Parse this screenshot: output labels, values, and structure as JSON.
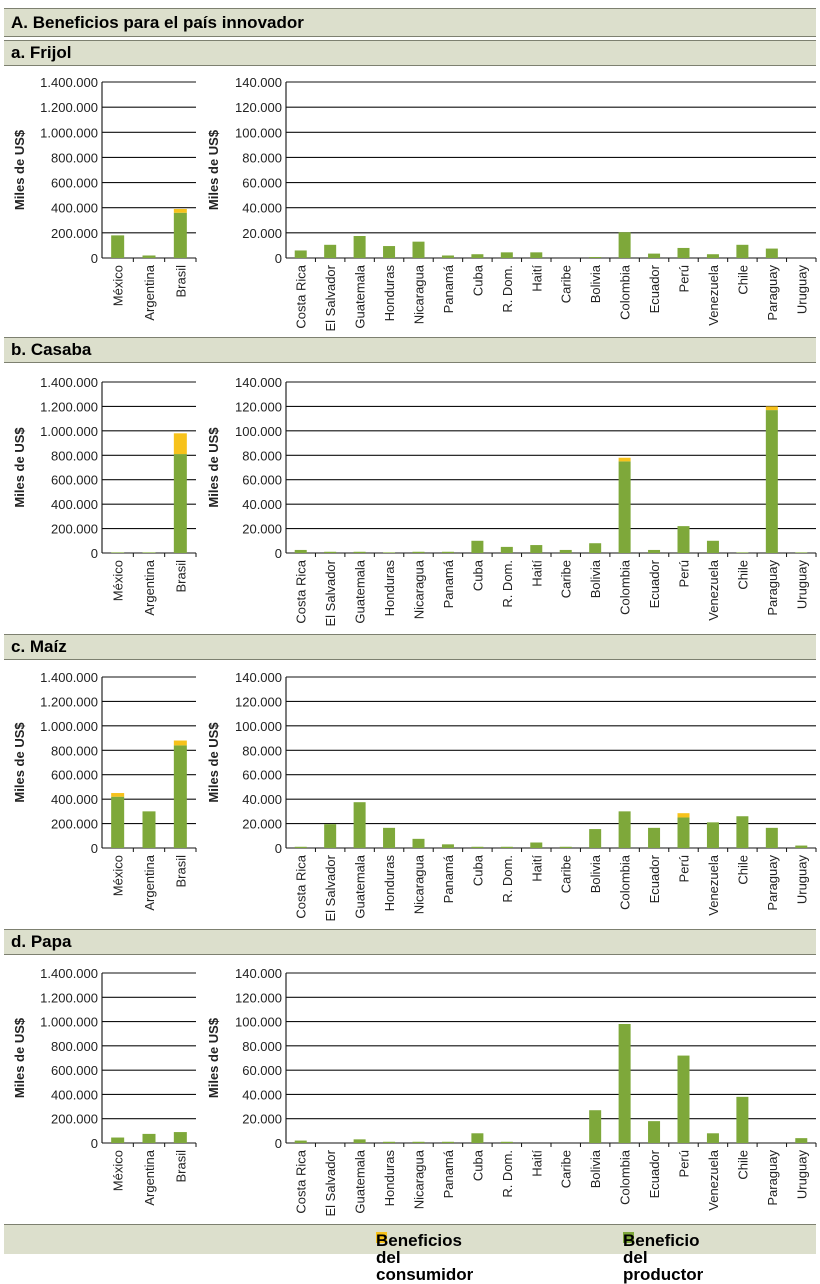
{
  "panel_title": "A. Beneficios para el país innovador",
  "y_axis_label": "Miles de US$",
  "legend": [
    {
      "label": "Beneficios del consumidor",
      "color": "#f7c21b"
    },
    {
      "label": "Beneficio del productor",
      "color": "#7ea83a"
    }
  ],
  "colors": {
    "consumer": "#f7c21b",
    "producer": "#7ea83a",
    "header_band": "#dcdfcc"
  },
  "chart_data": [
    {
      "type": "bar",
      "stacked": true,
      "section": "a. Frijol",
      "panel": "large",
      "categories": [
        "México",
        "Argentina",
        "Brasil"
      ],
      "ylim": [
        0,
        1400000
      ],
      "yticks": [
        "1.400.000",
        "1.200.000",
        "1.000.000",
        "800.000",
        "600.000",
        "400.000",
        "200.000",
        "0"
      ],
      "series": [
        {
          "name": "Beneficio del productor",
          "values": [
            180000,
            20000,
            360000
          ]
        },
        {
          "name": "Beneficios del consumidor",
          "values": [
            0,
            0,
            30000
          ]
        }
      ]
    },
    {
      "type": "bar",
      "stacked": true,
      "section": "a. Frijol",
      "panel": "small",
      "categories": [
        "Costa Rica",
        "El Salvador",
        "Guatemala",
        "Honduras",
        "Nicaragua",
        "Panamá",
        "Cuba",
        "R. Dom.",
        "Haití",
        "Caribe",
        "Bolivia",
        "Colombia",
        "Ecuador",
        "Perú",
        "Venezuela",
        "Chile",
        "Paraguay",
        "Uruguay"
      ],
      "ylim": [
        0,
        140000
      ],
      "yticks": [
        "140.000",
        "120.000",
        "100.000",
        "80.000",
        "60.000",
        "40.000",
        "20.000",
        "0"
      ],
      "series": [
        {
          "name": "Beneficio del productor",
          "values": [
            6000,
            10500,
            17500,
            9500,
            13000,
            2000,
            3000,
            4500,
            4500,
            0,
            800,
            20500,
            3500,
            8000,
            3000,
            10500,
            7500,
            0
          ]
        },
        {
          "name": "Beneficios del consumidor",
          "values": [
            0,
            0,
            0,
            0,
            0,
            0,
            0,
            0,
            0,
            0,
            0,
            0,
            0,
            0,
            0,
            0,
            0,
            0
          ]
        }
      ]
    },
    {
      "type": "bar",
      "stacked": true,
      "section": "b. Casaba",
      "panel": "large",
      "categories": [
        "México",
        "Argentina",
        "Brasil"
      ],
      "ylim": [
        0,
        1400000
      ],
      "yticks": [
        "1.400.000",
        "1.200.000",
        "1.000.000",
        "800.000",
        "600.000",
        "400.000",
        "200.000",
        "0"
      ],
      "series": [
        {
          "name": "Beneficio del productor",
          "values": [
            5000,
            5000,
            810000
          ]
        },
        {
          "name": "Beneficios del consumidor",
          "values": [
            0,
            0,
            170000
          ]
        }
      ]
    },
    {
      "type": "bar",
      "stacked": true,
      "section": "b. Casaba",
      "panel": "small",
      "categories": [
        "Costa Rica",
        "El Salvador",
        "Guatemala",
        "Honduras",
        "Nicaragua",
        "Panamá",
        "Cuba",
        "R. Dom.",
        "Haití",
        "Caribe",
        "Bolivia",
        "Colombia",
        "Ecuador",
        "Perú",
        "Venezuela",
        "Chile",
        "Paraguay",
        "Uruguay"
      ],
      "ylim": [
        0,
        140000
      ],
      "yticks": [
        "140.000",
        "120.000",
        "100.000",
        "80.000",
        "60.000",
        "40.000",
        "20.000",
        "0"
      ],
      "series": [
        {
          "name": "Beneficio del productor",
          "values": [
            2500,
            1000,
            1000,
            500,
            1000,
            1000,
            10000,
            5000,
            6500,
            2500,
            8000,
            75000,
            2500,
            22000,
            10000,
            500,
            117000,
            500
          ]
        },
        {
          "name": "Beneficios del consumidor",
          "values": [
            0,
            0,
            0,
            0,
            0,
            0,
            0,
            0,
            0,
            0,
            0,
            3000,
            0,
            0,
            0,
            0,
            3000,
            0
          ]
        }
      ]
    },
    {
      "type": "bar",
      "stacked": true,
      "section": "c. Maíz",
      "panel": "large",
      "categories": [
        "México",
        "Argentina",
        "Brasil"
      ],
      "ylim": [
        0,
        1400000
      ],
      "yticks": [
        "1.400.000",
        "1.200.000",
        "1.000.000",
        "800.000",
        "600.000",
        "400.000",
        "200.000",
        "0"
      ],
      "series": [
        {
          "name": "Beneficio del productor",
          "values": [
            420000,
            300000,
            840000
          ]
        },
        {
          "name": "Beneficios del consumidor",
          "values": [
            30000,
            0,
            40000
          ]
        }
      ]
    },
    {
      "type": "bar",
      "stacked": true,
      "section": "c. Maíz",
      "panel": "small",
      "categories": [
        "Costa Rica",
        "El Salvador",
        "Guatemala",
        "Honduras",
        "Nicaragua",
        "Panamá",
        "Cuba",
        "R. Dom.",
        "Haití",
        "Caribe",
        "Bolivia",
        "Colombia",
        "Ecuador",
        "Perú",
        "Venezuela",
        "Chile",
        "Paraguay",
        "Uruguay"
      ],
      "ylim": [
        0,
        140000
      ],
      "yticks": [
        "140.000",
        "120.000",
        "100.000",
        "80.000",
        "60.000",
        "40.000",
        "20.000",
        "0"
      ],
      "series": [
        {
          "name": "Beneficio del productor",
          "values": [
            1000,
            19500,
            37500,
            16500,
            7500,
            3000,
            1000,
            1000,
            4500,
            1000,
            15500,
            30000,
            16500,
            25000,
            21000,
            26000,
            16500,
            2000
          ]
        },
        {
          "name": "Beneficios del consumidor",
          "values": [
            0,
            0,
            0,
            0,
            0,
            0,
            0,
            0,
            0,
            0,
            0,
            0,
            0,
            3500,
            0,
            0,
            0,
            0
          ]
        }
      ]
    },
    {
      "type": "bar",
      "stacked": true,
      "section": "d. Papa",
      "panel": "large",
      "categories": [
        "México",
        "Argentina",
        "Brasil"
      ],
      "ylim": [
        0,
        1400000
      ],
      "yticks": [
        "1.400.000",
        "1.200.000",
        "1.000.000",
        "800.000",
        "600.000",
        "400.000",
        "200.000",
        "0"
      ],
      "series": [
        {
          "name": "Beneficio del productor",
          "values": [
            45000,
            75000,
            90000
          ]
        },
        {
          "name": "Beneficios del consumidor",
          "values": [
            0,
            0,
            0
          ]
        }
      ]
    },
    {
      "type": "bar",
      "stacked": true,
      "section": "d. Papa",
      "panel": "small",
      "categories": [
        "Costa Rica",
        "El Salvador",
        "Guatemala",
        "Honduras",
        "Nicaragua",
        "Panamá",
        "Cuba",
        "R. Dom.",
        "Haití",
        "Caribe",
        "Bolivia",
        "Colombia",
        "Ecuador",
        "Perú",
        "Venezuela",
        "Chile",
        "Paraguay",
        "Uruguay"
      ],
      "ylim": [
        0,
        140000
      ],
      "yticks": [
        "140.000",
        "120.000",
        "100.000",
        "80.000",
        "60.000",
        "40.000",
        "20.000",
        "0"
      ],
      "series": [
        {
          "name": "Beneficio del productor",
          "values": [
            2000,
            0,
            3000,
            1000,
            1000,
            1000,
            8000,
            1000,
            0,
            0,
            27000,
            98000,
            18000,
            72000,
            8000,
            38000,
            0,
            4000
          ]
        },
        {
          "name": "Beneficios del consumidor",
          "values": [
            0,
            0,
            0,
            0,
            0,
            0,
            0,
            0,
            0,
            0,
            0,
            0,
            0,
            0,
            0,
            0,
            0,
            0
          ]
        }
      ]
    }
  ]
}
